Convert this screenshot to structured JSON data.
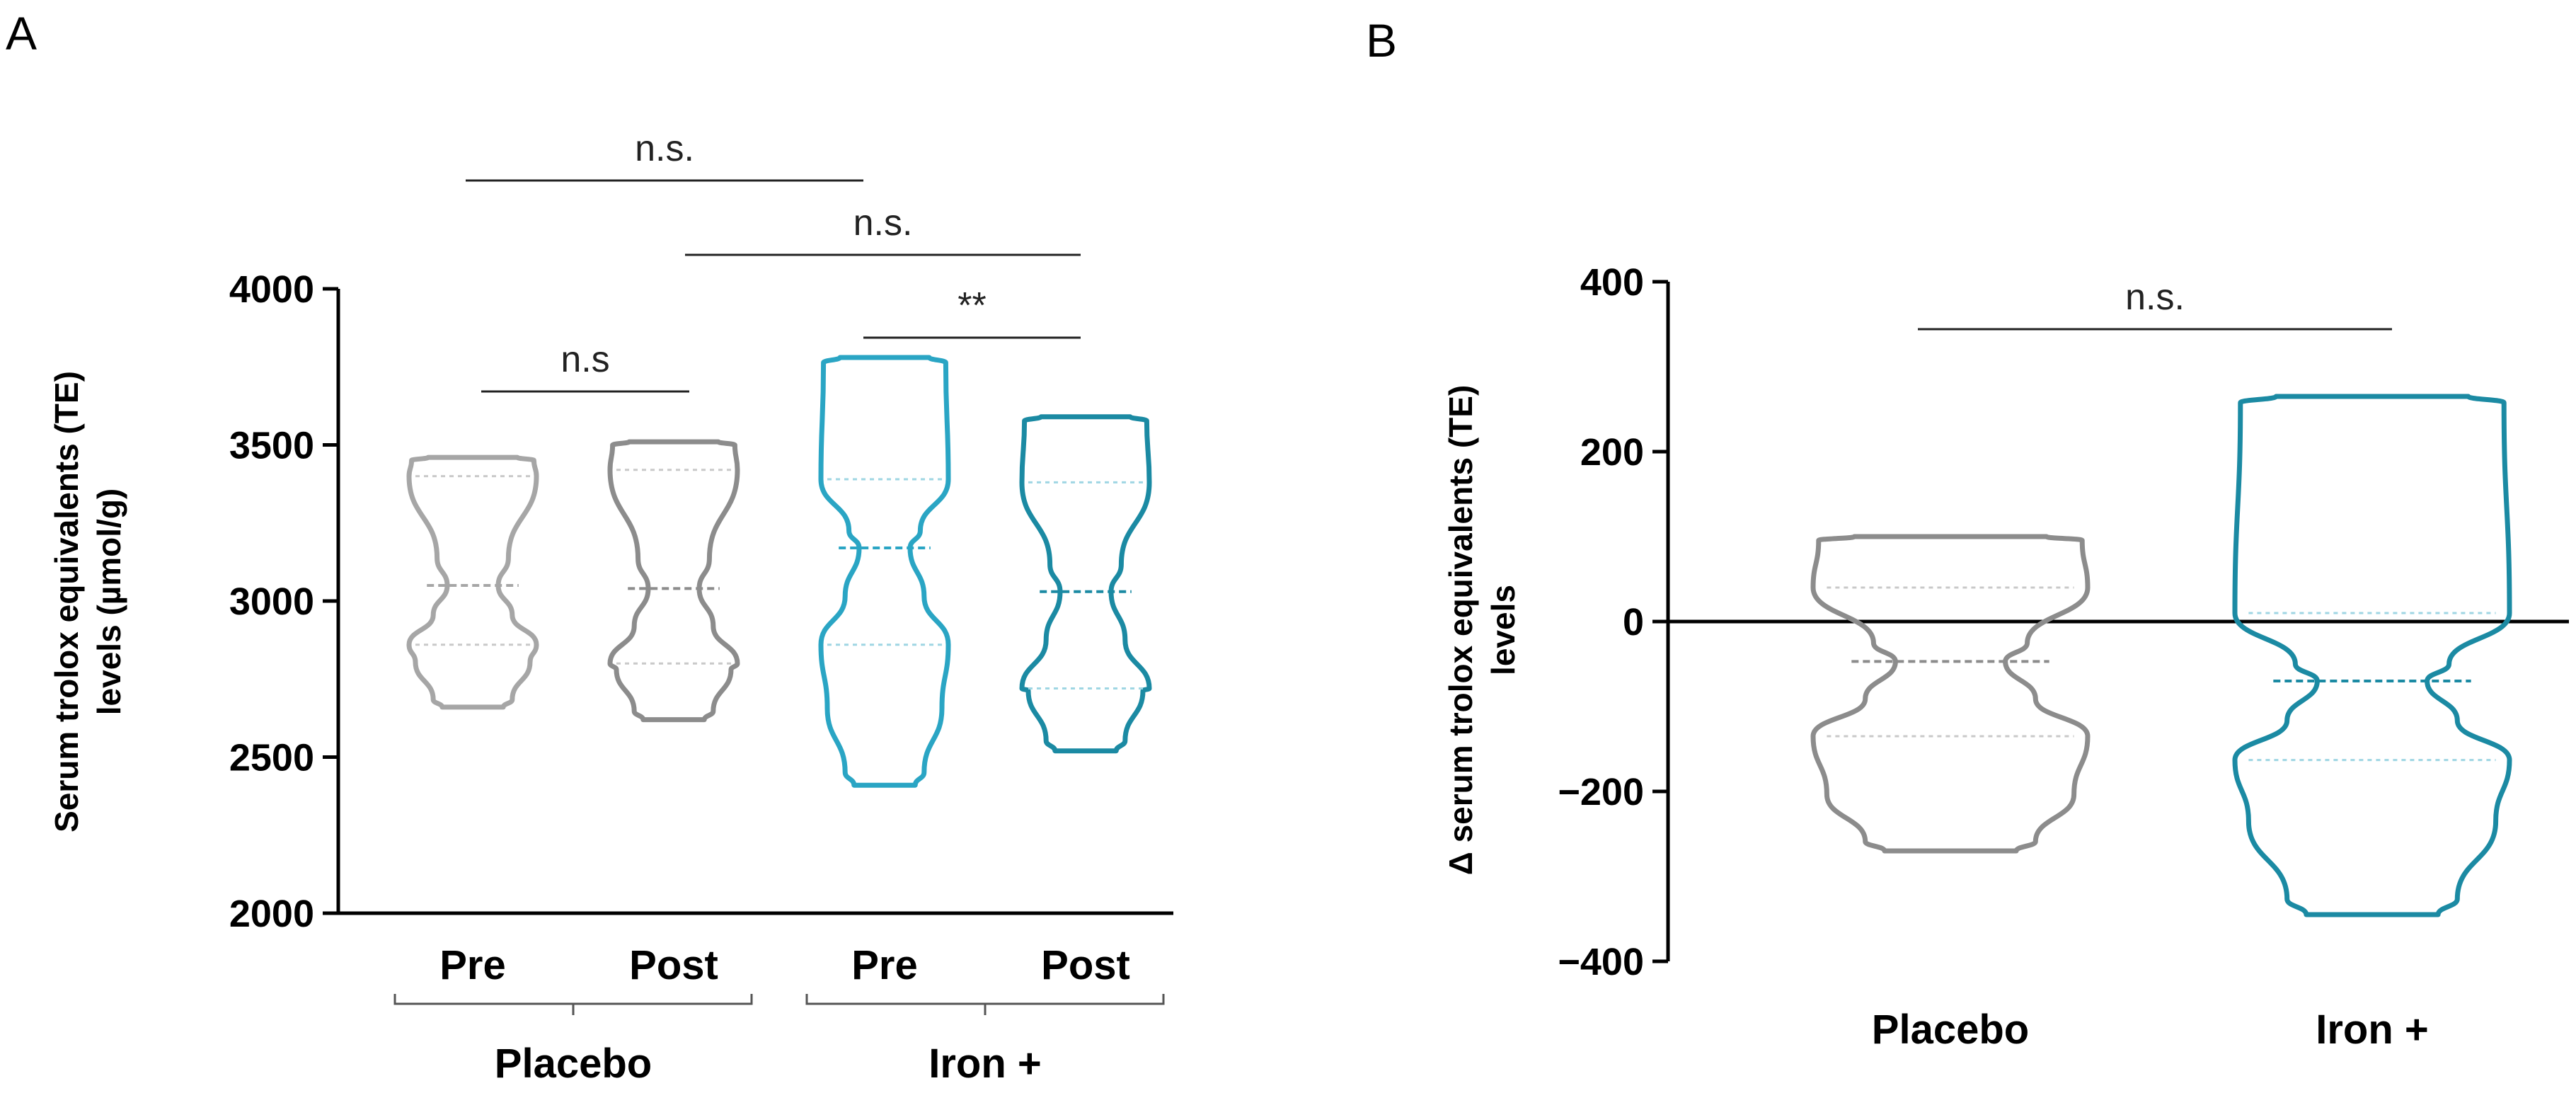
{
  "chart_data": [
    {
      "panel": "A",
      "type": "violin",
      "ylabel_line1": "Serum trolox equivalents (TE)",
      "ylabel_line2": "levels (µmol/g)",
      "ylim": [
        2000,
        4000
      ],
      "yticks": [
        2000,
        2500,
        3000,
        3500,
        4000
      ],
      "categories": [
        "Pre",
        "Post",
        "Pre",
        "Post"
      ],
      "groups": [
        {
          "label": "Placebo",
          "members": [
            0,
            1
          ]
        },
        {
          "label": "Iron +",
          "members": [
            2,
            3
          ]
        }
      ],
      "series": [
        {
          "name": "Placebo Pre",
          "color": "#a6a6a6",
          "min": 2660,
          "max": 3460,
          "q1": 2860,
          "median": 3050,
          "q3": 3400
        },
        {
          "name": "Placebo Post",
          "color": "#8c8c8c",
          "min": 2620,
          "max": 3510,
          "q1": 2800,
          "median": 3040,
          "q3": 3420
        },
        {
          "name": "Iron + Pre",
          "color": "#2aa5c4",
          "min": 2410,
          "max": 3780,
          "q1": 2860,
          "median": 3170,
          "q3": 3390
        },
        {
          "name": "Iron + Post",
          "color": "#1b8aa3",
          "min": 2520,
          "max": 3590,
          "q1": 2720,
          "median": 3030,
          "q3": 3380
        }
      ],
      "comparisons": [
        {
          "from": 0,
          "to": 2,
          "label": "n.s."
        },
        {
          "from": 1,
          "to": 3,
          "label": "n.s."
        },
        {
          "from": 2,
          "to": 3,
          "label": "**"
        },
        {
          "from": 0,
          "to": 1,
          "label": "n.s"
        }
      ]
    },
    {
      "panel": "B",
      "type": "violin",
      "ylabel_line1": "Δ serum trolox equivalents (TE)",
      "ylabel_line2": "levels",
      "ylim": [
        -400,
        400
      ],
      "yticks": [
        -400,
        -200,
        0,
        200,
        400
      ],
      "ytick_labels": [
        "−400",
        "−200",
        "0",
        "200",
        "400"
      ],
      "zero_line": true,
      "categories": [
        "Placebo",
        "Iron +"
      ],
      "series": [
        {
          "name": "Placebo",
          "color": "#8c8c8c",
          "min": -270,
          "max": 100,
          "q1": -135,
          "median": -47,
          "q3": 40
        },
        {
          "name": "Iron +",
          "color": "#1b8aa3",
          "min": -345,
          "max": 265,
          "q1": -163,
          "median": -70,
          "q3": 10
        }
      ],
      "comparisons": [
        {
          "from": 0,
          "to": 1,
          "label": "n.s."
        }
      ]
    }
  ]
}
